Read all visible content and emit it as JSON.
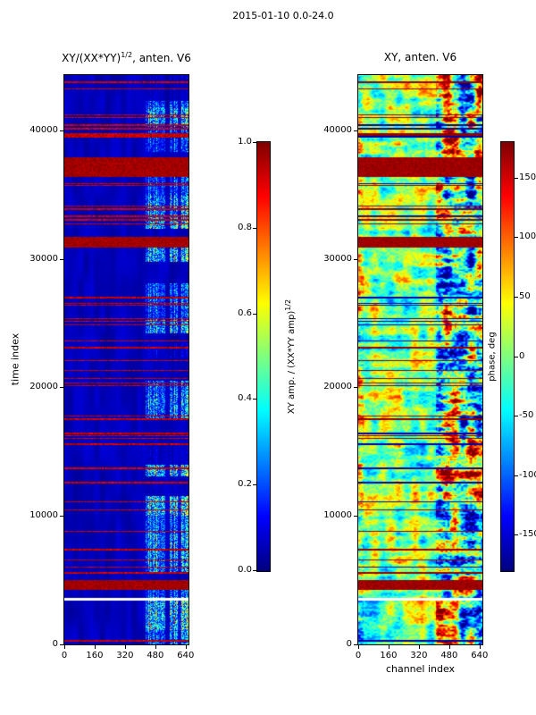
{
  "figure_title": "2015-01-10 0.0-24.0",
  "chart_data": [
    {
      "type": "heatmap",
      "id": "coherence",
      "title": {
        "pre": "XY/(XX*YY)",
        "sup": "1/2",
        "post": ", anten. V6"
      },
      "xlabel": "",
      "ylabel": "time index",
      "xlim": [
        0,
        655
      ],
      "ylim": [
        0,
        44300
      ],
      "xticks": [
        0,
        160,
        320,
        480,
        640
      ],
      "yticks": [
        0,
        10000,
        20000,
        30000,
        40000
      ],
      "value_range": [
        0,
        1
      ],
      "colormap": "jet",
      "grid": false,
      "colorbar": {
        "label": {
          "pre": "XY amp. / (XX*YY amp)",
          "sup": "1/2",
          "post": ""
        },
        "ticks": [
          "1.0",
          "0.8",
          "0.6",
          "0.4",
          "0.2",
          "0.0"
        ],
        "range": [
          0,
          1
        ]
      },
      "features": {
        "description": "Low coherence (dark blue, ~0.05) over channels 0-430; speckled high-coherence segmented band (0.2-1.0, green/yellow/red) over channels ~430-655; many narrow horizontal RFI streaks of saturated red (0.85-1.0) spanning all channels; fully saturated red bands near times 36400-37900, 30900-31700 and 4300-5000; thin white masked row near time 3500.",
        "background_value": 0.05,
        "speckle_channel_start": 430,
        "rfi_row_count": 55,
        "saturated_bands_time": [
          [
            36400,
            37900
          ],
          [
            30900,
            31700
          ],
          [
            4300,
            5000
          ]
        ],
        "masked_rows_time": [
          [
            3460,
            3560
          ]
        ],
        "seed": 20150110
      }
    },
    {
      "type": "heatmap",
      "id": "phase",
      "title": {
        "pre": "XY, anten. V6",
        "sup": "",
        "post": ""
      },
      "xlabel": "channel index",
      "ylabel": "",
      "xlim": [
        0,
        655
      ],
      "ylim": [
        0,
        44300
      ],
      "xticks": [
        0,
        160,
        320,
        480,
        640
      ],
      "yticks": [
        0,
        10000,
        20000,
        30000,
        40000
      ],
      "value_range": [
        -180,
        180
      ],
      "colormap": "jet",
      "grid": false,
      "colorbar": {
        "label": {
          "pre": "phase, deg",
          "sup": "",
          "post": ""
        },
        "ticks": [
          "150",
          "100",
          "50",
          "0",
          "-50",
          "-100",
          "-150"
        ],
        "range": [
          -180,
          180
        ]
      },
      "features": {
        "description": "Turbulent phase field mostly within +/-90 deg (cyan/green/yellow) over channels 0-410; strongly scattered phase saturating at +/-180 deg (dark red / dark blue patches) over channels ~410-655; horizontal dark streak rows aligned with the coherence RFI rows; saturated dark-red bands near times 36400-37900, 30900-31700 and 4300-5000; thin white masked row near time 3500.",
        "base_phase_amplitude_deg": 120,
        "high_noise_channel_start": 410,
        "high_noise_boost": 2.2,
        "rfi_row_count": 55,
        "saturated_bands_time": [
          [
            36400,
            37900
          ],
          [
            30900,
            31700
          ],
          [
            4300,
            5000
          ]
        ],
        "masked_rows_time": [
          [
            3460,
            3560
          ]
        ],
        "seed": 20150110
      }
    }
  ]
}
